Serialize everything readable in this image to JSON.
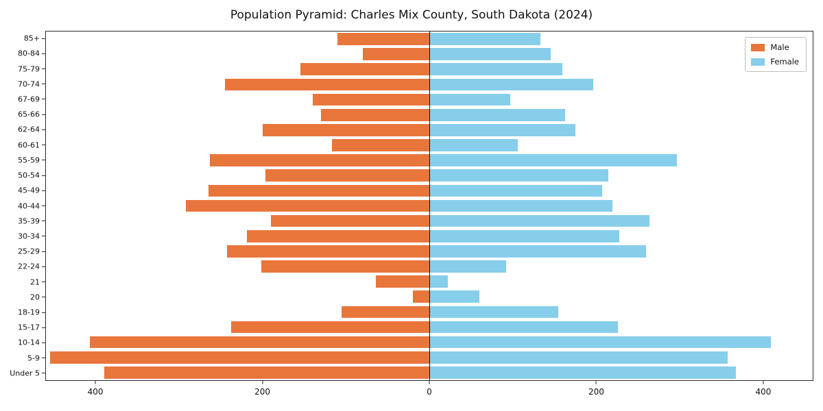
{
  "chart_data": {
    "type": "bar",
    "variant": "population-pyramid",
    "title": "Population Pyramid: Charles Mix County, South Dakota (2024)",
    "orientation": "horizontal",
    "grid": false,
    "legend_position": "upper right",
    "xlim": [
      -460,
      460
    ],
    "categories_top_to_bottom": [
      "85+",
      "80-84",
      "75-79",
      "70-74",
      "67-69",
      "65-66",
      "62-64",
      "60-61",
      "55-59",
      "50-54",
      "45-49",
      "40-44",
      "35-39",
      "30-34",
      "25-29",
      "22-24",
      "21",
      "20",
      "18-19",
      "15-17",
      "10-14",
      "5-9",
      "Under 5"
    ],
    "series": [
      {
        "name": "Male",
        "side": "left",
        "color": "#e8763b",
        "values": [
          110,
          80,
          155,
          245,
          140,
          130,
          200,
          117,
          263,
          197,
          265,
          292,
          190,
          219,
          243,
          202,
          64,
          20,
          105,
          238,
          407,
          455,
          390
        ]
      },
      {
        "name": "Female",
        "side": "right",
        "color": "#87ceeb",
        "values": [
          133,
          146,
          160,
          197,
          97,
          163,
          175,
          106,
          297,
          215,
          207,
          220,
          264,
          228,
          260,
          92,
          22,
          60,
          155,
          226,
          410,
          358,
          368
        ]
      }
    ],
    "x_ticks": [
      {
        "value": -400,
        "label": "400"
      },
      {
        "value": -200,
        "label": "200"
      },
      {
        "value": 0,
        "label": "0"
      },
      {
        "value": 200,
        "label": "200"
      },
      {
        "value": 400,
        "label": "400"
      }
    ]
  }
}
